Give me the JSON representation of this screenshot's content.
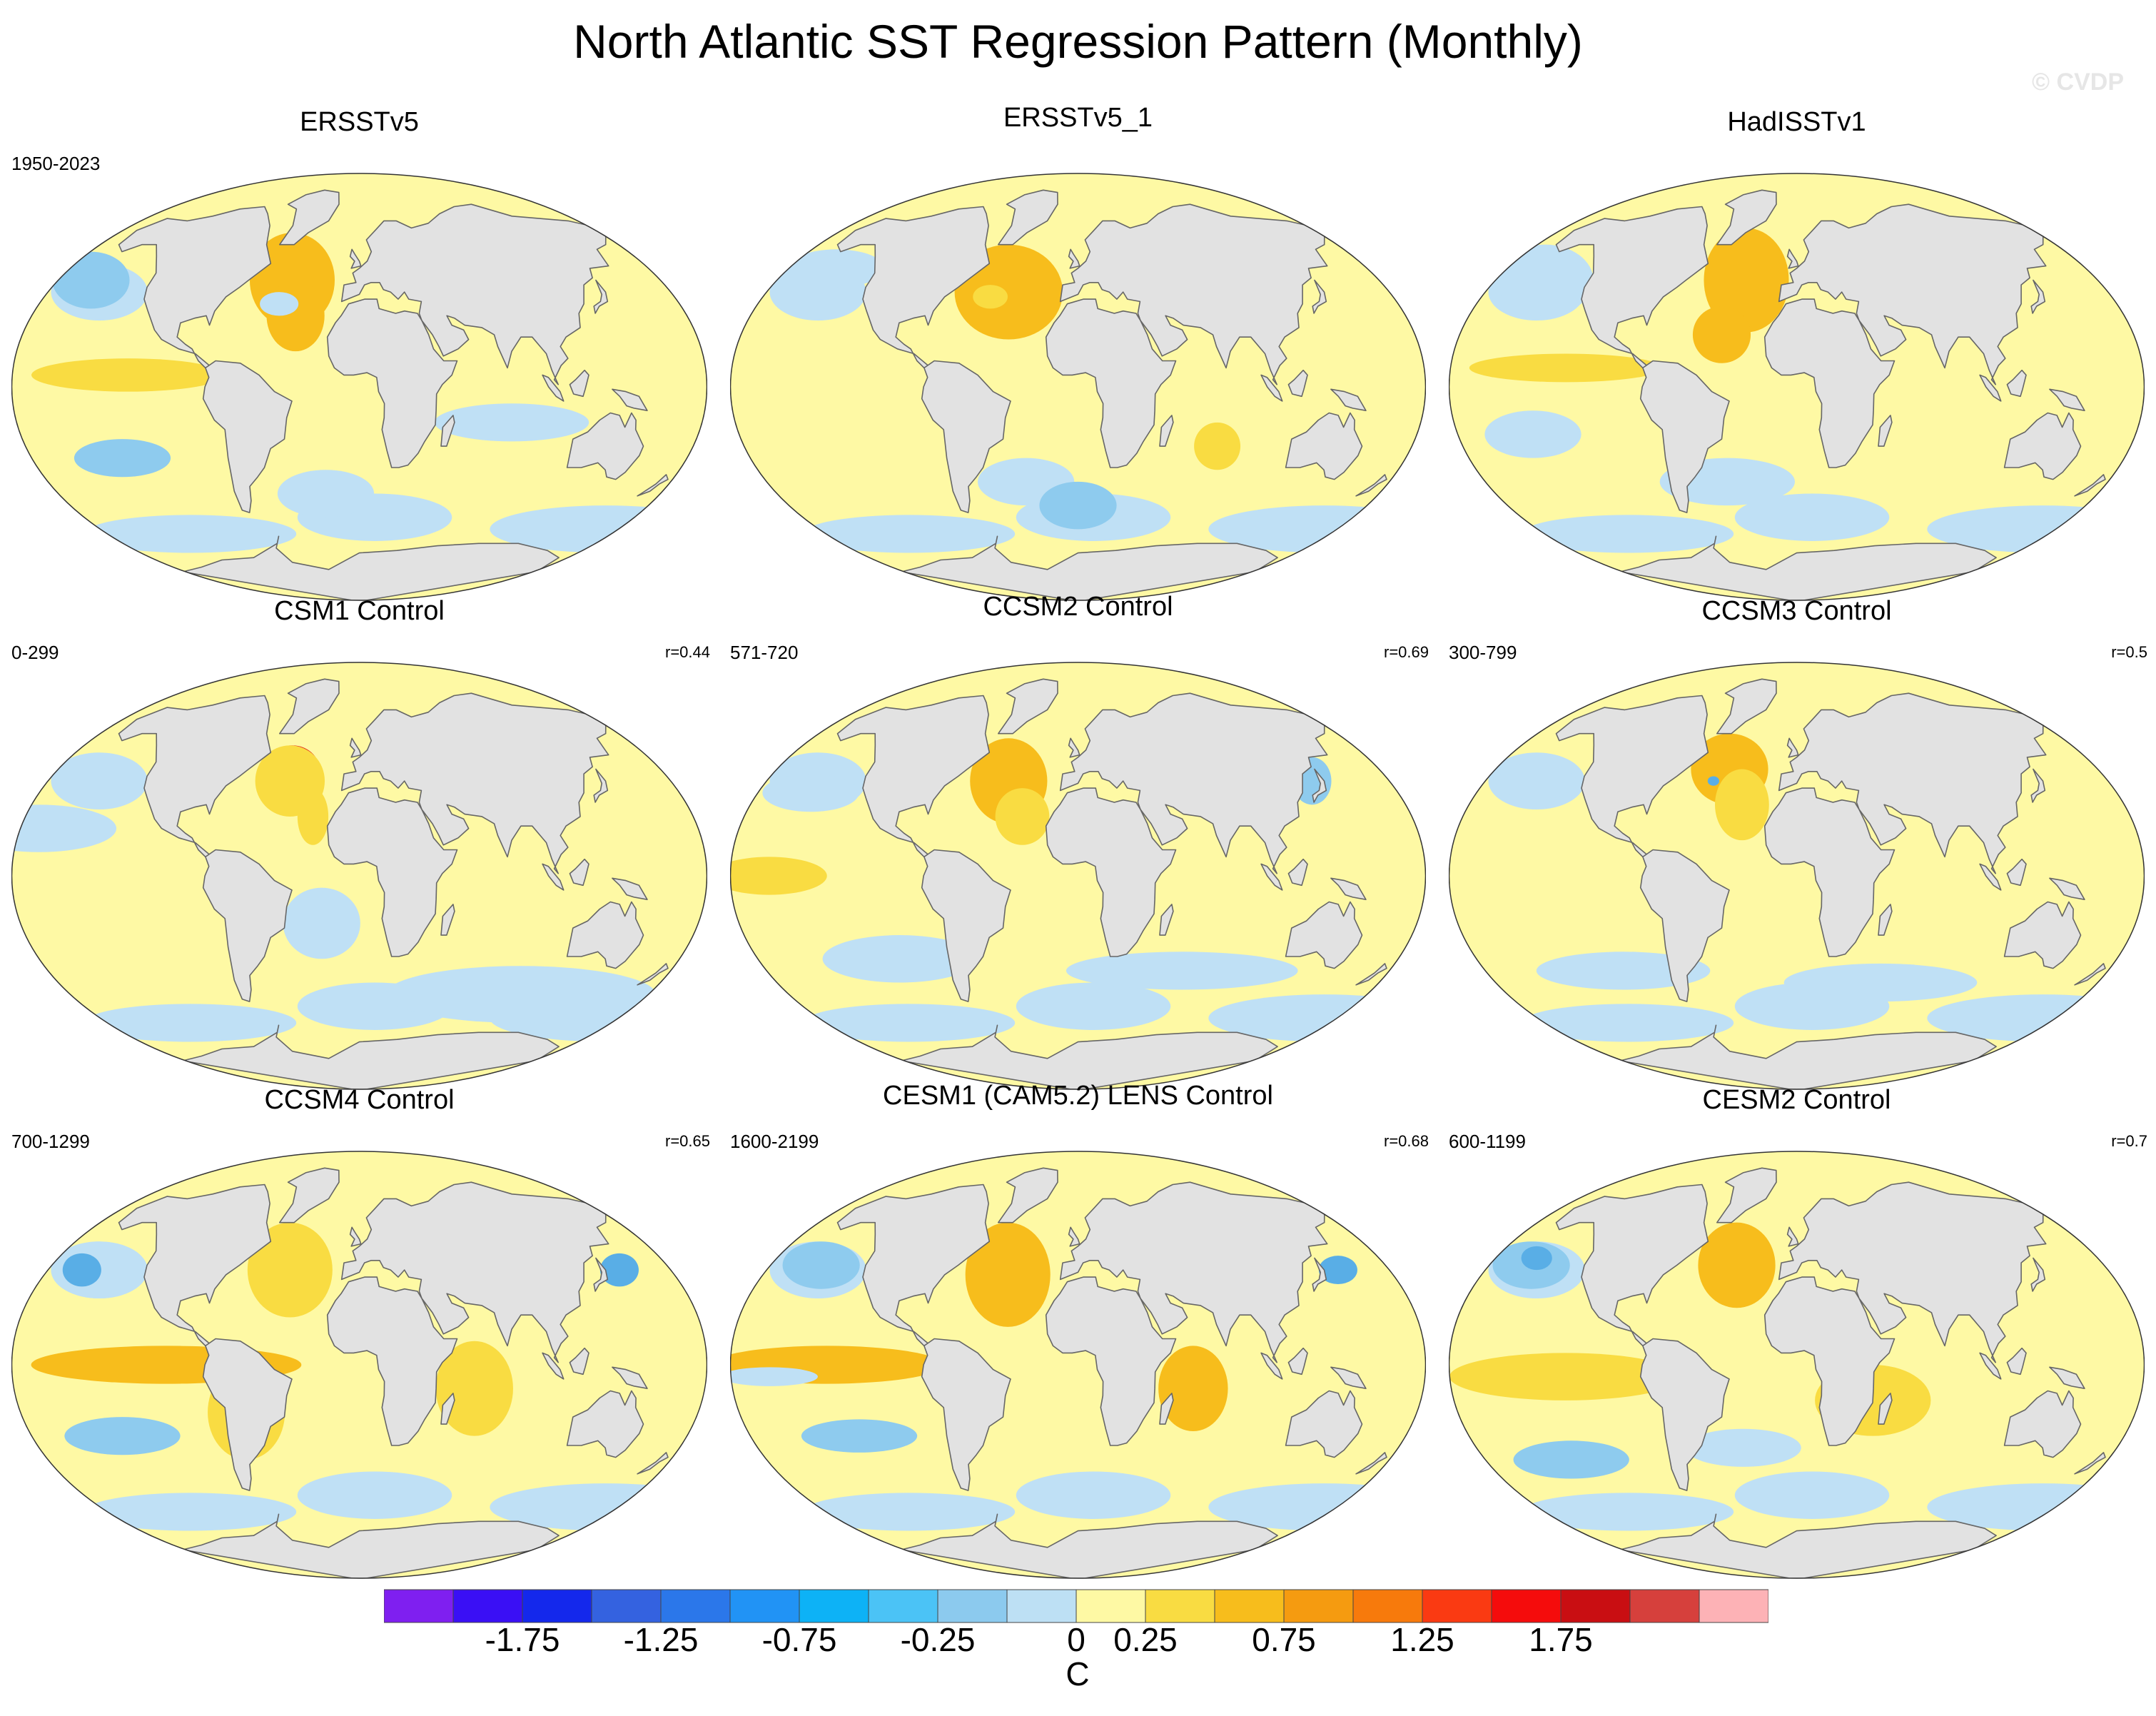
{
  "title": "North Atlantic SST Regression Pattern (Monthly)",
  "watermark": "© CVDP",
  "palette": {
    "land": "#e2e2e2",
    "coast": "#666666",
    "ocean_base": "#fef9a4",
    "light_blue": "#bfe0f5",
    "mid_blue": "#8ecbee",
    "strong_blue": "#59aee6",
    "light_orange": "#f9dc42",
    "orange": "#f7bd1c",
    "dark_orange": "#f59b10",
    "red": "#e03020",
    "dark_red": "#b5141e"
  },
  "panels": [
    {
      "title": "ERSSTv5",
      "period": "1950-2023",
      "corr": "",
      "variant": "obs1"
    },
    {
      "title": "ERSSTv5_1",
      "period": "",
      "corr": "",
      "variant": "obs2"
    },
    {
      "title": "HadISSTv1",
      "period": "",
      "corr": "",
      "variant": "obs3"
    },
    {
      "title": "CSM1 Control",
      "period": "0-299",
      "corr": "r=0.44",
      "variant": "csm1"
    },
    {
      "title": "CCSM2 Control",
      "period": "571-720",
      "corr": "r=0.69",
      "variant": "ccsm2"
    },
    {
      "title": "CCSM3 Control",
      "period": "300-799",
      "corr": "r=0.5",
      "variant": "ccsm3"
    },
    {
      "title": "CCSM4 Control",
      "period": "700-1299",
      "corr": "r=0.65",
      "variant": "ccsm4"
    },
    {
      "title": "CESM1 (CAM5.2) LENS Control",
      "period": "1600-2199",
      "corr": "r=0.68",
      "variant": "cesm1"
    },
    {
      "title": "CESM2 Control",
      "period": "600-1199",
      "corr": "r=0.7",
      "variant": "cesm2"
    }
  ],
  "colorbar": {
    "colors": [
      "#7f1ff0",
      "#3a0ff5",
      "#1428ec",
      "#3462e0",
      "#2b77ea",
      "#2193f5",
      "#0db2f6",
      "#4bc3f6",
      "#8ccaee",
      "#bde0f4",
      "#fef9a4",
      "#f9dc42",
      "#f7bd1c",
      "#f59b10",
      "#f77a0c",
      "#fa3a12",
      "#f50c0c",
      "#c90e12",
      "#d6403c",
      "#fdb2b6"
    ],
    "labels": [
      "-1.75",
      "-1.25",
      "-0.75",
      "-0.25",
      "0",
      "0.25",
      "0.75",
      "1.25",
      "1.75"
    ],
    "units": "C"
  }
}
